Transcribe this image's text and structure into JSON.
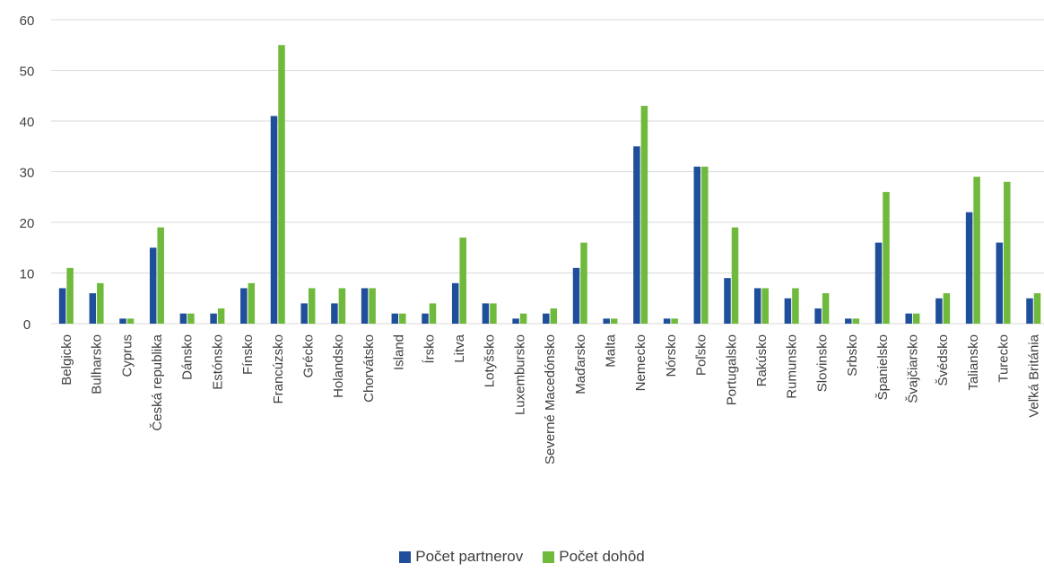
{
  "chart_data": {
    "type": "bar",
    "categories": [
      "Belgicko",
      "Bulharsko",
      "Cyprus",
      "Česká republika",
      "Dánsko",
      "Estónsko",
      "Fínsko",
      "Francúzsko",
      "Grécko",
      "Holandsko",
      "Chorvátsko",
      "Island",
      "Írsko",
      "Litva",
      "Lotyšsko",
      "Luxembursko",
      "Severné Macedónsko",
      "Maďarsko",
      "Malta",
      "Nemecko",
      "Nórsko",
      "Poľsko",
      "Portugalsko",
      "Rakúsko",
      "Rumunsko",
      "Slovinsko",
      "Srbsko",
      "Španielsko",
      "Švajčiarsko",
      "Švédsko",
      "Taliansko",
      "Turecko",
      "Veľká Británia"
    ],
    "series": [
      {
        "name": "Počet partnerov",
        "color": "#1f4e9b",
        "values": [
          7,
          6,
          1,
          15,
          2,
          2,
          7,
          41,
          4,
          4,
          7,
          2,
          2,
          8,
          4,
          1,
          2,
          11,
          1,
          35,
          1,
          31,
          9,
          7,
          5,
          3,
          1,
          16,
          2,
          5,
          22,
          16,
          5
        ]
      },
      {
        "name": "Počet dohôd",
        "color": "#6fba3c",
        "values": [
          11,
          8,
          1,
          19,
          2,
          3,
          8,
          55,
          7,
          7,
          7,
          2,
          4,
          17,
          4,
          2,
          3,
          16,
          1,
          43,
          1,
          31,
          19,
          7,
          7,
          6,
          1,
          26,
          2,
          6,
          29,
          28,
          6
        ]
      }
    ],
    "yticks": [
      0,
      10,
      20,
      30,
      40,
      50,
      60
    ],
    "ylim": [
      0,
      60
    ],
    "grid": true,
    "legend_position": "bottom"
  }
}
